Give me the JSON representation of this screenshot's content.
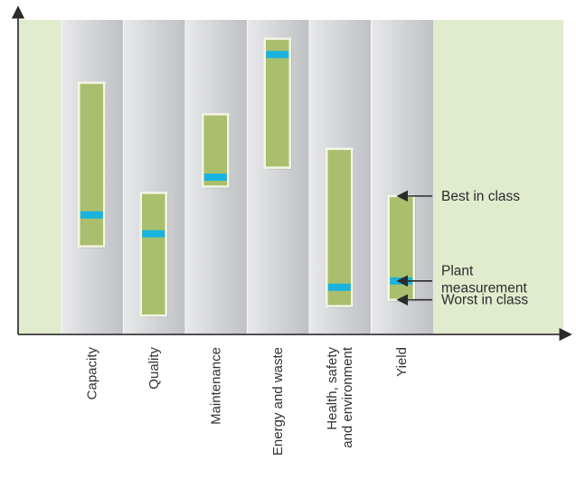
{
  "chart_data": {
    "type": "range-bar",
    "categories": [
      "Capacity",
      "Quality",
      "Maintenance",
      "Energy and waste",
      "Health, safety and environment",
      "Yield"
    ],
    "category_label_lines": [
      [
        "Capacity"
      ],
      [
        "Quality"
      ],
      [
        "Maintenance"
      ],
      [
        "Energy and waste"
      ],
      [
        "Health, safety",
        "and environment"
      ],
      [
        "Yield"
      ]
    ],
    "series": [
      {
        "name": "Best in class",
        "values": [
          80,
          45,
          70,
          94,
          59,
          44
        ]
      },
      {
        "name": "Worst in class",
        "values": [
          28,
          6,
          47,
          53,
          9,
          11
        ]
      },
      {
        "name": "Plant measurement",
        "values": [
          38,
          32,
          50,
          89,
          15,
          17
        ]
      }
    ],
    "ylim": [
      0,
      100
    ],
    "xlabel": "",
    "ylabel": "",
    "y_ticks_shown": false,
    "legend": [
      {
        "label_lines": [
          "Best in class"
        ],
        "key": "best"
      },
      {
        "label_lines": [
          "Plant",
          "measurement"
        ],
        "key": "plant"
      },
      {
        "label_lines": [
          "Worst in class"
        ],
        "key": "worst"
      }
    ],
    "legend_position": "right",
    "colors": {
      "bar_fill": "#a9bf6e",
      "bar_border": "#f2f5e6",
      "marker": "#19b3df",
      "plot_background": "#e1ebce",
      "column_band": "#c6c8cc",
      "column_band_light": "#e7e8ea",
      "axis": "#3a3a3a"
    }
  }
}
